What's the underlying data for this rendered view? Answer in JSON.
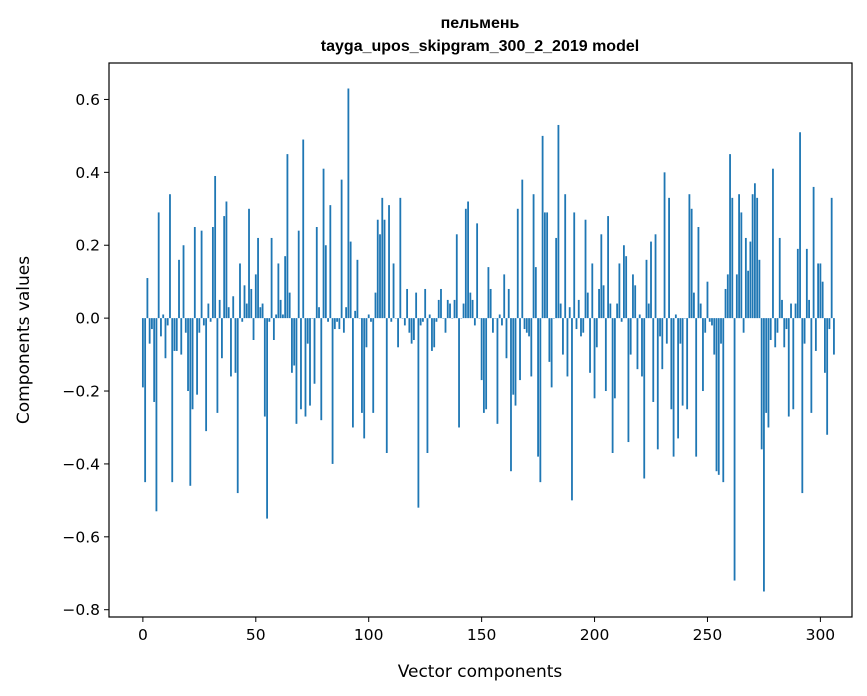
{
  "chart_data": {
    "type": "bar",
    "title": "пельмень",
    "subtitle": "tayga_upos_skipgram_300_2_2019 model",
    "xlabel": "Vector components",
    "ylabel": "Components values",
    "xlim": [
      -15,
      314
    ],
    "ylim": [
      -0.82,
      0.7
    ],
    "x_ticks": [
      0,
      50,
      100,
      150,
      200,
      250,
      300
    ],
    "y_ticks": [
      -0.8,
      -0.6,
      -0.4,
      -0.2,
      0.0,
      0.2,
      0.4,
      0.6
    ],
    "x_tick_labels": [
      "0",
      "50",
      "100",
      "150",
      "200",
      "250",
      "300"
    ],
    "y_tick_labels": [
      "−0.8",
      "−0.6",
      "−0.4",
      "−0.2",
      "0.0",
      "0.2",
      "0.4",
      "0.6"
    ],
    "bar_color": "#1f77b4",
    "grid": false,
    "values": [
      -0.19,
      -0.45,
      0.11,
      -0.07,
      -0.03,
      -0.23,
      -0.53,
      0.29,
      -0.05,
      0.01,
      -0.11,
      -0.02,
      0.34,
      -0.45,
      -0.09,
      -0.09,
      0.16,
      -0.1,
      0.2,
      -0.04,
      -0.2,
      -0.46,
      -0.25,
      0.25,
      -0.21,
      -0.04,
      0.24,
      -0.02,
      -0.31,
      0.04,
      -0.01,
      0.25,
      0.39,
      -0.26,
      0.05,
      -0.11,
      0.28,
      0.32,
      0.03,
      -0.16,
      0.06,
      -0.15,
      -0.48,
      0.15,
      -0.01,
      0.09,
      0.04,
      0.3,
      0.08,
      -0.06,
      0.12,
      0.22,
      0.03,
      0.04,
      -0.27,
      -0.55,
      -0.01,
      0.22,
      -0.06,
      0.01,
      0.15,
      0.05,
      0.01,
      0.17,
      0.45,
      0.07,
      -0.15,
      -0.13,
      -0.29,
      0.24,
      -0.25,
      0.49,
      -0.27,
      -0.07,
      -0.24,
      0.0,
      -0.18,
      0.25,
      0.03,
      -0.28,
      0.41,
      0.2,
      -0.01,
      0.31,
      -0.4,
      -0.03,
      -0.01,
      -0.03,
      0.38,
      -0.04,
      0.03,
      0.63,
      0.21,
      -0.3,
      0.02,
      0.16,
      0.0,
      -0.26,
      -0.33,
      -0.08,
      0.01,
      -0.01,
      -0.26,
      0.07,
      0.27,
      0.23,
      0.33,
      0.27,
      -0.37,
      0.31,
      -0.01,
      0.15,
      0.0,
      -0.08,
      0.33,
      0.0,
      -0.02,
      0.08,
      -0.04,
      -0.07,
      -0.06,
      0.07,
      -0.52,
      -0.02,
      -0.01,
      0.08,
      -0.37,
      0.01,
      -0.09,
      -0.08,
      -0.01,
      0.05,
      0.08,
      0.0,
      -0.04,
      0.05,
      0.04,
      0.0,
      0.05,
      0.23,
      -0.3,
      0.0,
      0.04,
      0.3,
      0.32,
      0.07,
      0.05,
      -0.02,
      0.26,
      0.0,
      -0.17,
      -0.26,
      -0.25,
      0.14,
      0.08,
      -0.04,
      0.0,
      -0.29,
      0.01,
      -0.02,
      0.12,
      -0.11,
      0.08,
      -0.42,
      -0.21,
      -0.24,
      0.3,
      -0.17,
      0.38,
      -0.03,
      -0.04,
      -0.05,
      -0.16,
      0.34,
      0.14,
      -0.38,
      -0.45,
      0.5,
      0.29,
      0.29,
      -0.12,
      -0.19,
      0.0,
      0.22,
      0.53,
      0.04,
      -0.1,
      0.34,
      -0.16,
      0.03,
      -0.5,
      0.29,
      -0.03,
      0.05,
      -0.05,
      -0.04,
      0.27,
      0.07,
      -0.15,
      0.15,
      -0.22,
      -0.08,
      0.08,
      0.23,
      0.09,
      -0.2,
      0.28,
      0.04,
      -0.37,
      -0.22,
      0.04,
      0.15,
      -0.01,
      0.2,
      0.17,
      -0.34,
      -0.1,
      0.12,
      0.09,
      -0.14,
      0.01,
      -0.16,
      -0.44,
      0.16,
      0.04,
      0.21,
      -0.23,
      0.23,
      -0.36,
      -0.05,
      -0.14,
      0.4,
      -0.07,
      0.33,
      -0.25,
      -0.38,
      0.01,
      -0.33,
      -0.07,
      -0.24,
      0.0,
      -0.25,
      0.34,
      0.3,
      0.07,
      -0.38,
      0.25,
      0.04,
      -0.2,
      -0.04,
      0.1,
      -0.01,
      -0.02,
      -0.1,
      -0.42,
      -0.43,
      -0.07,
      -0.45,
      0.08,
      0.12,
      0.45,
      0.33,
      -0.72,
      0.12,
      0.34,
      0.29,
      -0.04,
      0.22,
      0.13,
      0.21,
      0.34,
      0.37,
      0.33,
      0.16,
      -0.36,
      -0.75,
      -0.26,
      -0.3,
      -0.06,
      0.41,
      -0.08,
      -0.04,
      0.22,
      0.05,
      -0.08,
      -0.03,
      -0.27,
      0.04,
      -0.25,
      0.04,
      0.19,
      0.51,
      -0.48,
      -0.07,
      0.19,
      0.05,
      -0.26,
      0.36,
      -0.09,
      0.15,
      0.15,
      0.1,
      -0.15,
      -0.32,
      -0.03,
      0.33,
      -0.1
    ]
  }
}
